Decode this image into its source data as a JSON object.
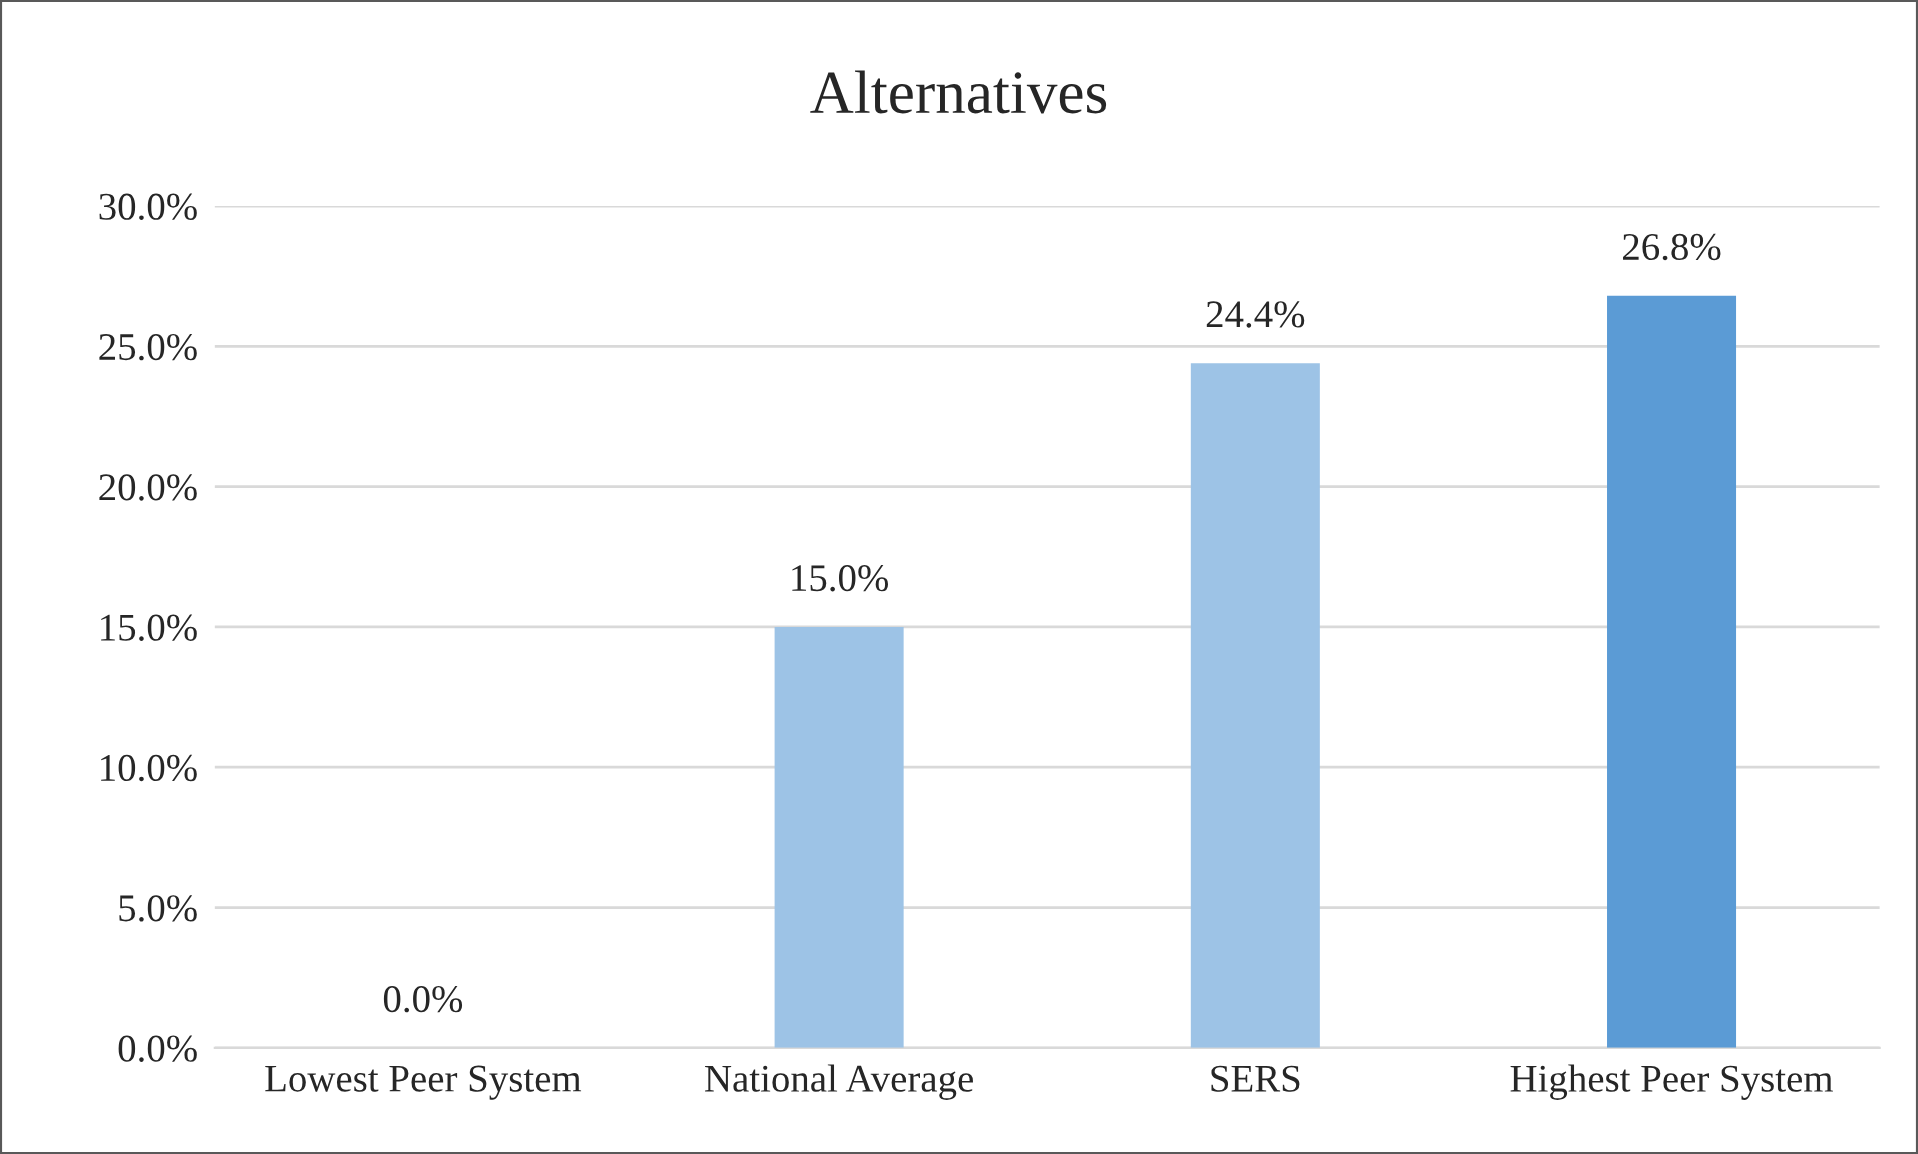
{
  "chart_data": {
    "type": "bar",
    "title": "Alternatives",
    "categories": [
      "Lowest Peer System",
      "National Average",
      "SERS",
      "Highest Peer System"
    ],
    "values": [
      0.0,
      15.0,
      24.4,
      26.8
    ],
    "colors": [
      "#9dc3e6",
      "#9dc3e6",
      "#9dc3e6",
      "#5b9bd5"
    ],
    "value_labels": [
      "0.0%",
      "15.0%",
      "24.4%",
      "26.8%"
    ],
    "ylim": [
      0,
      30
    ],
    "yticks": [
      {
        "value": 0,
        "label": "0.0%"
      },
      {
        "value": 5,
        "label": "5.0%"
      },
      {
        "value": 10,
        "label": "10.0%"
      },
      {
        "value": 15,
        "label": "15.0%"
      },
      {
        "value": 20,
        "label": "20.0%"
      },
      {
        "value": 25,
        "label": "25.0%"
      },
      {
        "value": 30,
        "label": "30.0%"
      }
    ],
    "grid": "y",
    "legend": false
  }
}
